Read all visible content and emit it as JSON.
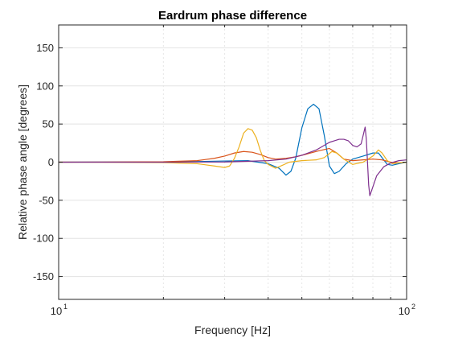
{
  "chart_data": {
    "type": "line",
    "title": "Eardrum phase difference",
    "xlabel": "Frequency [Hz]",
    "ylabel": "Relative phase angle [degrees]",
    "xscale": "log",
    "xlim": [
      10,
      100
    ],
    "ylim": [
      -180,
      180
    ],
    "grid": "on",
    "x_ticks": [
      {
        "base": "10",
        "exp": "1"
      },
      {
        "base": "10",
        "exp": "2"
      }
    ],
    "y_ticks": [
      150,
      100,
      50,
      0,
      -50,
      -100,
      -150
    ],
    "series": [
      {
        "color": "#0072BD",
        "points": [
          [
            10,
            0
          ],
          [
            20,
            0.3
          ],
          [
            25,
            0.8
          ],
          [
            30,
            1.5
          ],
          [
            35,
            2
          ],
          [
            40,
            -2
          ],
          [
            43,
            -8
          ],
          [
            45,
            -17
          ],
          [
            46.5,
            -12
          ],
          [
            48,
            5
          ],
          [
            50,
            45
          ],
          [
            52,
            70
          ],
          [
            54,
            76
          ],
          [
            56,
            70
          ],
          [
            58,
            35
          ],
          [
            60,
            -5
          ],
          [
            62,
            -15
          ],
          [
            64,
            -12
          ],
          [
            67,
            -2
          ],
          [
            70,
            4
          ],
          [
            75,
            8
          ],
          [
            80,
            12
          ],
          [
            83,
            12
          ],
          [
            85,
            6
          ],
          [
            88,
            -3
          ],
          [
            91,
            -4
          ],
          [
            95,
            -2
          ],
          [
            100,
            0
          ]
        ]
      },
      {
        "color": "#D95319",
        "points": [
          [
            10,
            0
          ],
          [
            20,
            0.5
          ],
          [
            25,
            2
          ],
          [
            28,
            5
          ],
          [
            30,
            8
          ],
          [
            32,
            12
          ],
          [
            34,
            14
          ],
          [
            36,
            13
          ],
          [
            38,
            10
          ],
          [
            40,
            6
          ],
          [
            42,
            4
          ],
          [
            45,
            5
          ],
          [
            48,
            7
          ],
          [
            52,
            11
          ],
          [
            56,
            15
          ],
          [
            60,
            18
          ],
          [
            63,
            12
          ],
          [
            66,
            4
          ],
          [
            70,
            2
          ],
          [
            75,
            3
          ],
          [
            80,
            4
          ],
          [
            85,
            3
          ],
          [
            90,
            0
          ],
          [
            95,
            -1
          ],
          [
            100,
            0
          ]
        ]
      },
      {
        "color": "#EDB120",
        "points": [
          [
            10,
            0
          ],
          [
            20,
            -0.5
          ],
          [
            25,
            -2
          ],
          [
            28,
            -5
          ],
          [
            30,
            -7
          ],
          [
            31,
            -5
          ],
          [
            32,
            5
          ],
          [
            33,
            20
          ],
          [
            34,
            38
          ],
          [
            35,
            44
          ],
          [
            36,
            42
          ],
          [
            37,
            32
          ],
          [
            38,
            15
          ],
          [
            39,
            2
          ],
          [
            40,
            -3
          ],
          [
            42,
            -8
          ],
          [
            44,
            -4
          ],
          [
            46,
            0
          ],
          [
            50,
            2
          ],
          [
            55,
            3
          ],
          [
            58,
            6
          ],
          [
            61,
            14
          ],
          [
            63,
            12
          ],
          [
            66,
            4
          ],
          [
            70,
            -3
          ],
          [
            75,
            0
          ],
          [
            80,
            8
          ],
          [
            83,
            16
          ],
          [
            85,
            12
          ],
          [
            88,
            2
          ],
          [
            91,
            -2
          ],
          [
            95,
            -1
          ],
          [
            100,
            0
          ]
        ]
      },
      {
        "color": "#7E2F8E",
        "points": [
          [
            10,
            0
          ],
          [
            20,
            0
          ],
          [
            30,
            0.3
          ],
          [
            40,
            2
          ],
          [
            45,
            4
          ],
          [
            50,
            9
          ],
          [
            55,
            16
          ],
          [
            60,
            26
          ],
          [
            62,
            28
          ],
          [
            64,
            30
          ],
          [
            66,
            30
          ],
          [
            68,
            28
          ],
          [
            70,
            22
          ],
          [
            72,
            20
          ],
          [
            74,
            24
          ],
          [
            75,
            35
          ],
          [
            76,
            46
          ],
          [
            76.6,
            30
          ],
          [
            77.2,
            0
          ],
          [
            77.8,
            -30
          ],
          [
            78.4,
            -44
          ],
          [
            79.5,
            -36
          ],
          [
            82,
            -18
          ],
          [
            86,
            -6
          ],
          [
            90,
            -1
          ],
          [
            95,
            2
          ],
          [
            100,
            3
          ]
        ]
      }
    ]
  }
}
